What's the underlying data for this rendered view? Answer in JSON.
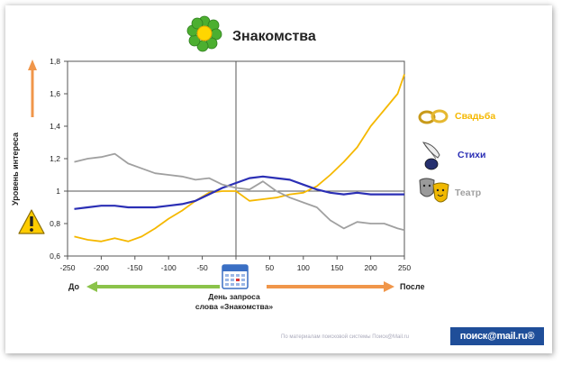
{
  "header": {
    "title": "Знакомства",
    "flower_icon": "flower-icon"
  },
  "y_axis_label": "Уровень интереса",
  "legend": [
    {
      "label": "Свадьба",
      "color": "#f5b800",
      "icon": "wedding-rings-icon"
    },
    {
      "label": "Стихи",
      "color": "#2b2fb5",
      "icon": "quill-ink-icon"
    },
    {
      "label": "Театр",
      "color": "#a0a0a0",
      "icon": "theater-masks-icon"
    }
  ],
  "bottom": {
    "before": "До",
    "after": "После",
    "center": "День запроса\nслова «Знакомства»",
    "before_arrow_color": "#8bc34a",
    "after_arrow_color": "#f0964a",
    "calendar_icon": "calendar-icon"
  },
  "footer": {
    "source": "По материалам поисковой системы Поиск@Mail.ru",
    "logo": "поиск@mail.ru®"
  },
  "warning_icon": "warning-icon",
  "chart_data": {
    "type": "line",
    "xlim": [
      -250,
      250
    ],
    "ylim": [
      0.6,
      1.8
    ],
    "x_ticks": [
      "-250",
      "-200",
      "-150",
      "-100",
      "-50",
      "0",
      "50",
      "100",
      "150",
      "200",
      "250"
    ],
    "y_ticks": [
      "0,6",
      "0,8",
      "1",
      "1,2",
      "1,4",
      "1,6",
      "1,8"
    ],
    "grid": false,
    "reference_lines": {
      "x": 0,
      "y": 1
    },
    "x": [
      -240,
      -220,
      -200,
      -180,
      -160,
      -140,
      -120,
      -100,
      -80,
      -60,
      -40,
      -20,
      0,
      20,
      40,
      60,
      80,
      100,
      120,
      140,
      160,
      180,
      200,
      220,
      240,
      250
    ],
    "series": [
      {
        "name": "Свадьба",
        "color": "#f5b800",
        "values": [
          0.72,
          0.7,
          0.69,
          0.71,
          0.69,
          0.72,
          0.77,
          0.83,
          0.88,
          0.94,
          0.99,
          1.0,
          1.0,
          0.94,
          0.95,
          0.96,
          0.98,
          0.99,
          1.03,
          1.1,
          1.18,
          1.27,
          1.4,
          1.5,
          1.6,
          1.72
        ]
      },
      {
        "name": "Стихи",
        "color": "#2b2fb5",
        "values": [
          0.89,
          0.9,
          0.91,
          0.91,
          0.9,
          0.9,
          0.9,
          0.91,
          0.92,
          0.94,
          0.98,
          1.02,
          1.05,
          1.08,
          1.09,
          1.08,
          1.07,
          1.04,
          1.01,
          0.99,
          0.98,
          0.99,
          0.98,
          0.98,
          0.98,
          0.98
        ]
      },
      {
        "name": "Театр",
        "color": "#a0a0a0",
        "values": [
          1.18,
          1.2,
          1.21,
          1.23,
          1.17,
          1.14,
          1.11,
          1.1,
          1.09,
          1.07,
          1.08,
          1.04,
          1.02,
          1.01,
          1.06,
          1.0,
          0.96,
          0.93,
          0.9,
          0.82,
          0.77,
          0.81,
          0.8,
          0.8,
          0.77,
          0.76
        ]
      }
    ]
  }
}
